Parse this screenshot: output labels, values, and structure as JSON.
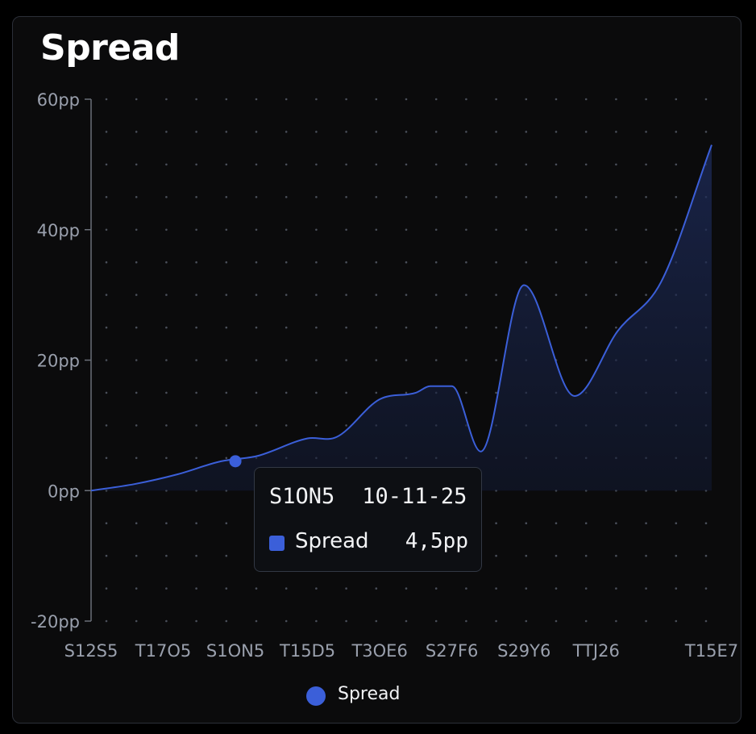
{
  "colors": {
    "background": "#0b0b0c",
    "line": "#3b5fd9",
    "axis": "#6b6f78",
    "text": "#9aa0ad"
  },
  "chart_data": {
    "type": "area",
    "title": "Spread",
    "xlabel": "",
    "ylabel": "",
    "y_tick_labels": [
      "60pp",
      "40pp",
      "20pp",
      "0pp",
      "-20pp"
    ],
    "y_ticks": [
      60,
      40,
      20,
      0,
      -20
    ],
    "ylim": [
      -20,
      60
    ],
    "x_tick_labels": [
      "S12S5",
      "T17O5",
      "S1ON5",
      "T15D5",
      "T3OE6",
      "S27F6",
      "S29Y6",
      "TTJ26",
      "T15E7"
    ],
    "x_tick_positions": [
      0,
      1,
      2,
      3,
      4,
      5,
      6,
      7,
      8.6
    ],
    "xlim": [
      0,
      8.6
    ],
    "grid": "dotted",
    "legend_position": "bottom",
    "series": [
      {
        "name": "Spread",
        "x": [
          0,
          0.6,
          1.2,
          1.8,
          2.3,
          3.0,
          3.4,
          4.0,
          4.5,
          4.7,
          5.0,
          5.4,
          6.0,
          6.7,
          7.3,
          7.9,
          8.6
        ],
        "y": [
          0,
          1,
          2.5,
          4.5,
          5.3,
          8,
          8.2,
          14,
          15,
          16,
          16,
          6,
          31.5,
          14.5,
          24.5,
          32,
          53
        ]
      }
    ],
    "highlighted_point": {
      "x": 2,
      "y": 4.5
    }
  },
  "tooltip": {
    "label": "S1ON5",
    "date": "10-11-25",
    "series": "Spread",
    "value": "4,5pp"
  },
  "legend": {
    "items": [
      {
        "label": "Spread",
        "color": "#3b5fd9"
      }
    ]
  }
}
